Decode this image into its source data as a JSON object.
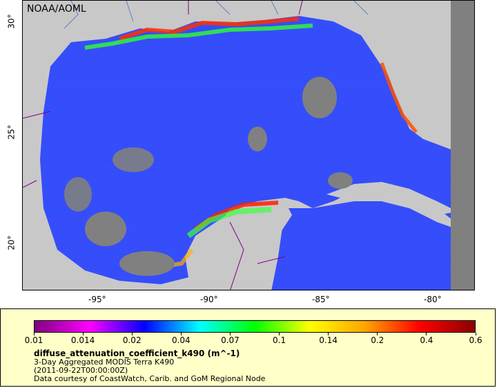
{
  "map": {
    "credit": "NOAA/AOML",
    "lon_labels": [
      "-95°",
      "-90°",
      "-85°",
      "-80°"
    ],
    "lat_labels": [
      "30°",
      "25°",
      "20°"
    ]
  },
  "legend": {
    "colorbar_stops": [
      "#800080",
      "#ff00ff",
      "#0000ff",
      "#00ffff",
      "#00ff00",
      "#ffff00",
      "#ffa500",
      "#ff0000",
      "#8b0000"
    ],
    "tick_labels": [
      "0.01",
      "0.014",
      "0.02",
      "0.04",
      "0.07",
      "0.1",
      "0.14",
      "0.2",
      "0.4",
      "0.6"
    ],
    "variable": "diffuse_attenuation_coefficient_k490 (m^-1)",
    "dataset": "3-Day Aggregated MODIS Terra K490",
    "time": "(2011-09-22T00:00:00Z)",
    "courtesy": "Data courtesy of CoastWatch, Carib. and GoM Regional Node"
  }
}
